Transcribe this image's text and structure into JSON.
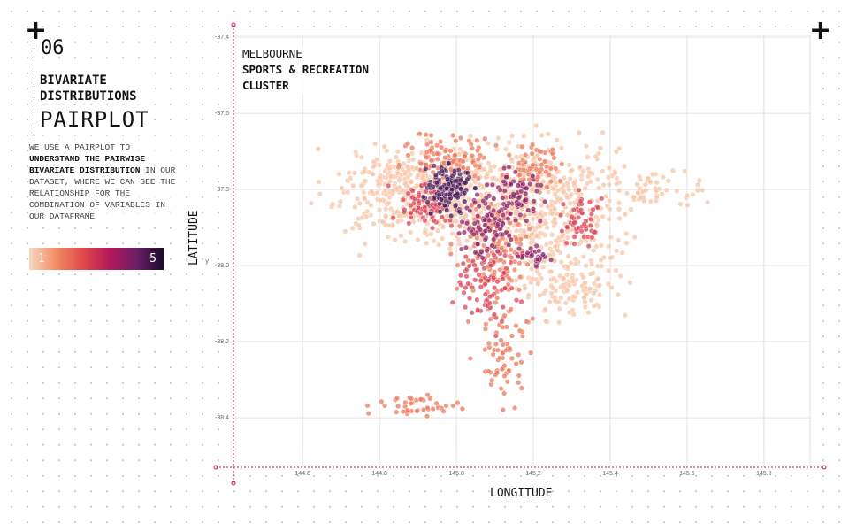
{
  "section": {
    "number": "06",
    "heading": "BIVARIATE DISTRIBUTIONS",
    "subheading": "PAIRPLOT",
    "desc_1": "WE USE A PAIRPLOT TO ",
    "desc_bold": "UNDERSTAND THE PAIRWISE BIVARIATE DISTRIBUTION",
    "desc_2": " IN OUR DATASET, WHERE WE CAN SEE THE RELATIONSHIP FOR THE COMBINATION OF VARIABLES IN OUR DATAFRAME"
  },
  "colorbar": {
    "min_label": "1",
    "max_label": "5",
    "colors": [
      "#f6d9c2",
      "#f18c64",
      "#e04a4a",
      "#b3195a",
      "#6b1e66",
      "#2a0f3a"
    ]
  },
  "chart_data": {
    "type": "scatter",
    "title_line1": "MELBOURNE",
    "title_line2": "SPORTS & RECREATION",
    "title_line3": "CLUSTER",
    "xlabel": "LONGITUDE",
    "ylabel": "LATITUDE",
    "ylabel_small": "y",
    "xlim": [
      144.42,
      145.92
    ],
    "ylim": [
      -38.53,
      -37.395
    ],
    "xticks": [
      "144.6",
      "144.8",
      "145.0",
      "145.2",
      "145.4",
      "145.6",
      "145.8"
    ],
    "yticks": [
      "-37.4",
      "-37.6",
      "-37.8",
      "-38.0",
      "-38.2",
      "-38.4"
    ],
    "grid": true,
    "clusters": [
      {
        "lon": 145.0,
        "lat": -37.82,
        "sx": 0.17,
        "sy": 0.09,
        "n": 420,
        "value": 1
      },
      {
        "lon": 145.25,
        "lat": -37.85,
        "sx": 0.12,
        "sy": 0.12,
        "n": 380,
        "value": 1
      },
      {
        "lon": 144.82,
        "lat": -37.8,
        "sx": 0.1,
        "sy": 0.08,
        "n": 150,
        "value": 1
      },
      {
        "lon": 145.3,
        "lat": -38.05,
        "sx": 0.1,
        "sy": 0.06,
        "n": 120,
        "value": 1
      },
      {
        "lon": 145.5,
        "lat": -37.8,
        "sx": 0.1,
        "sy": 0.04,
        "n": 60,
        "value": 1
      },
      {
        "lon": 145.12,
        "lat": -38.2,
        "sx": 0.05,
        "sy": 0.1,
        "n": 80,
        "value": 2
      },
      {
        "lon": 144.9,
        "lat": -38.37,
        "sx": 0.08,
        "sy": 0.02,
        "n": 40,
        "value": 2
      },
      {
        "lon": 145.1,
        "lat": -37.95,
        "sx": 0.06,
        "sy": 0.08,
        "n": 120,
        "value": 2
      },
      {
        "lon": 144.98,
        "lat": -37.72,
        "sx": 0.08,
        "sy": 0.04,
        "n": 100,
        "value": 2
      },
      {
        "lon": 145.2,
        "lat": -37.74,
        "sx": 0.05,
        "sy": 0.04,
        "n": 60,
        "value": 2
      },
      {
        "lon": 145.08,
        "lat": -38.06,
        "sx": 0.05,
        "sy": 0.07,
        "n": 80,
        "value": 3
      },
      {
        "lon": 144.92,
        "lat": -37.84,
        "sx": 0.05,
        "sy": 0.04,
        "n": 80,
        "value": 3
      },
      {
        "lon": 145.33,
        "lat": -37.88,
        "sx": 0.04,
        "sy": 0.04,
        "n": 50,
        "value": 3
      },
      {
        "lon": 145.15,
        "lat": -37.82,
        "sx": 0.05,
        "sy": 0.05,
        "n": 80,
        "value": 4
      },
      {
        "lon": 145.08,
        "lat": -37.9,
        "sx": 0.05,
        "sy": 0.05,
        "n": 70,
        "value": 4
      },
      {
        "lon": 145.2,
        "lat": -37.98,
        "sx": 0.03,
        "sy": 0.02,
        "n": 30,
        "value": 4
      },
      {
        "lon": 144.98,
        "lat": -37.8,
        "sx": 0.04,
        "sy": 0.04,
        "n": 130,
        "value": 5
      }
    ]
  }
}
